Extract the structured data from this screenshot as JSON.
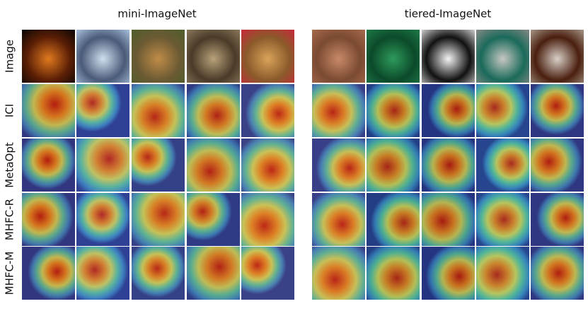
{
  "groups": [
    {
      "title": "mini-ImageNet"
    },
    {
      "title": "tiered-ImageNet"
    }
  ],
  "rows": [
    "Image",
    "ICI",
    "MetaOpt",
    "MHFC-R",
    "MHFC-M"
  ]
}
